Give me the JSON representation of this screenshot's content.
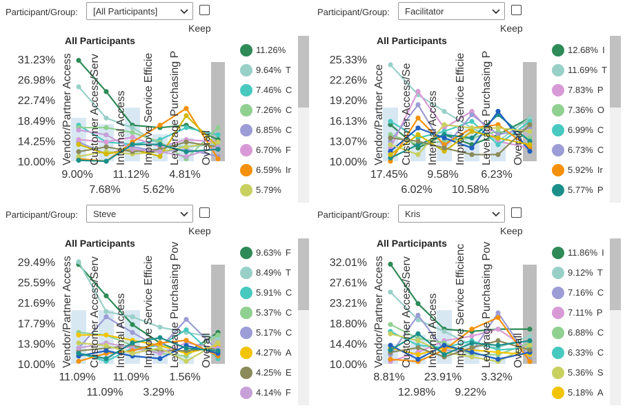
{
  "keep_label": "Keep",
  "participant_label": "Participant/Group:",
  "colors": [
    "#2e8b57",
    "#98d0c8",
    "#48c9c0",
    "#90d090",
    "#9c9cd6",
    "#d89ad6",
    "#f5900a",
    "#c8d060",
    "#d4b800",
    "#8a8a5a",
    "#c8a0d8",
    "#1a8f8a"
  ],
  "panels": [
    {
      "select_value": "[All Participants]",
      "legend": [
        {
          "pct": "11.26%",
          "label": "",
          "color": "#2e8b57"
        },
        {
          "pct": "9.64%",
          "label": "T",
          "color": "#98d0c8"
        },
        {
          "pct": "7.46%",
          "label": "C",
          "color": "#48c9c0"
        },
        {
          "pct": "7.26%",
          "label": "C",
          "color": "#90d090"
        },
        {
          "pct": "6.85%",
          "label": "C",
          "color": "#9c9cd6"
        },
        {
          "pct": "6.70%",
          "label": "F",
          "color": "#d89ad6"
        },
        {
          "pct": "6.59%",
          "label": "Ir",
          "color": "#f5900a"
        },
        {
          "pct": "5.79%",
          "label": "",
          "color": "#c8d060"
        }
      ],
      "chart_data": {
        "type": "line",
        "title": "All Participants",
        "categories": [
          "Vendor/Partner Access",
          "Customer Access/Serv",
          "Internal Access",
          "Improve Service Efficie",
          "Leverage Purchasing P",
          "Overall"
        ],
        "bar_values": [
          9.0,
          7.68,
          11.12,
          5.62,
          4.81,
          null
        ],
        "ylim": [
          10.0,
          31.23
        ],
        "yticks": [
          "31.23%",
          "26.98%",
          "22.74%",
          "18.49%",
          "14.25%",
          "10.00%"
        ],
        "series": [
          {
            "values": [
              31.0,
              24.5,
              17.5,
              17.0,
              17.5,
              14.5
            ],
            "color": "#2e8b57"
          },
          {
            "values": [
              25.5,
              19.0,
              17.0,
              13.5,
              13.0,
              13.5
            ],
            "color": "#98d0c8"
          },
          {
            "values": [
              17.5,
              14.0,
              13.5,
              14.5,
              17.0,
              15.5
            ],
            "color": "#48c9c0"
          },
          {
            "values": [
              17.0,
              17.0,
              16.0,
              14.0,
              10.5,
              17.0
            ],
            "color": "#90d090"
          },
          {
            "values": [
              14.0,
              11.5,
              13.0,
              12.0,
              12.5,
              11.0
            ],
            "color": "#9c9cd6"
          },
          {
            "values": [
              14.5,
              14.0,
              15.0,
              13.0,
              14.5,
              14.0
            ],
            "color": "#d89ad6"
          },
          {
            "values": [
              10.5,
              10.0,
              14.0,
              17.5,
              21.0,
              10.5
            ],
            "color": "#f5900a"
          },
          {
            "values": [
              11.0,
              12.0,
              11.5,
              12.0,
              13.0,
              14.0
            ],
            "color": "#c8d060"
          },
          {
            "values": [
              13.5,
              11.5,
              12.5,
              11.0,
              19.5,
              13.0
            ],
            "color": "#d4b800"
          },
          {
            "values": [
              12.0,
              13.0,
              12.0,
              12.5,
              14.0,
              13.0
            ],
            "color": "#8a8a5a"
          },
          {
            "values": [
              16.5,
              15.5,
              12.5,
              12.0,
              11.0,
              13.0
            ],
            "color": "#c8a0d8"
          },
          {
            "values": [
              10.2,
              10.0,
              13.5,
              13.5,
              12.0,
              12.5
            ],
            "color": "#1a8f8a"
          }
        ]
      }
    },
    {
      "select_value": "Facilitator",
      "legend": [
        {
          "pct": "12.68%",
          "label": "I",
          "color": "#2e8b57"
        },
        {
          "pct": "11.69%",
          "label": "T",
          "color": "#98d0c8"
        },
        {
          "pct": "7.83%",
          "label": "P",
          "color": "#d89ad6"
        },
        {
          "pct": "7.36%",
          "label": "O",
          "color": "#90d090"
        },
        {
          "pct": "6.99%",
          "label": "C",
          "color": "#48c9c0"
        },
        {
          "pct": "6.73%",
          "label": "C",
          "color": "#9c9cd6"
        },
        {
          "pct": "5.92%",
          "label": "Ir",
          "color": "#f5900a"
        },
        {
          "pct": "5.77%",
          "label": "P",
          "color": "#1a8f8a"
        }
      ],
      "chart_data": {
        "type": "line",
        "title": "All Participants",
        "categories": [
          "Vendor/Partner Acce",
          "Customer Access/Se",
          "Internal Access",
          "Improve Service Efficie",
          "Leverage Purchasing P",
          "Overall"
        ],
        "bar_values": [
          17.45,
          6.02,
          9.58,
          10.58,
          6.23,
          null
        ],
        "ylim": [
          10.0,
          25.33
        ],
        "yticks": [
          "25.33%",
          "22.26%",
          "19.20%",
          "16.13%",
          "13.07%",
          "10.00%"
        ],
        "series": [
          {
            "values": [
              15.5,
              12.0,
              14.0,
              12.5,
              14.0,
              16.5
            ],
            "color": "#2e8b57"
          },
          {
            "values": [
              24.5,
              20.0,
              17.5,
              15.0,
              13.0,
              16.5
            ],
            "color": "#98d0c8"
          },
          {
            "values": [
              12.0,
              20.5,
              15.0,
              17.5,
              13.0,
              12.0
            ],
            "color": "#d89ad6"
          },
          {
            "values": [
              14.0,
              12.5,
              13.0,
              13.5,
              14.5,
              13.5
            ],
            "color": "#90d090"
          },
          {
            "values": [
              16.0,
              13.5,
              14.5,
              16.0,
              12.5,
              16.0
            ],
            "color": "#48c9c0"
          },
          {
            "values": [
              13.0,
              18.5,
              12.0,
              17.0,
              14.0,
              15.0
            ],
            "color": "#9c9cd6"
          },
          {
            "values": [
              10.0,
              16.5,
              12.5,
              15.0,
              15.5,
              12.0
            ],
            "color": "#f5900a"
          },
          {
            "values": [
              10.5,
              12.5,
              14.0,
              13.5,
              17.0,
              13.0
            ],
            "color": "#1a8f8a"
          },
          {
            "values": [
              11.5,
              15.0,
              13.5,
              12.0,
              17.5,
              11.5
            ],
            "color": "#1f5fbf"
          },
          {
            "values": [
              12.5,
              11.0,
              15.5,
              15.0,
              15.0,
              14.5
            ],
            "color": "#c8d060"
          },
          {
            "values": [
              11.0,
              14.0,
              11.5,
              14.5,
              13.5,
              12.5
            ],
            "color": "#d4b800"
          },
          {
            "values": [
              13.5,
              13.0,
              12.0,
              11.0,
              11.0,
              15.5
            ],
            "color": "#8a8a5a"
          }
        ]
      }
    },
    {
      "select_value": "Steve",
      "legend": [
        {
          "pct": "9.63%",
          "label": "F",
          "color": "#2e8b57"
        },
        {
          "pct": "8.49%",
          "label": "T",
          "color": "#98d0c8"
        },
        {
          "pct": "5.91%",
          "label": "C",
          "color": "#48c9c0"
        },
        {
          "pct": "5.37%",
          "label": "C",
          "color": "#90d090"
        },
        {
          "pct": "5.17%",
          "label": "C",
          "color": "#9c9cd6"
        },
        {
          "pct": "4.27%",
          "label": "A",
          "color": "#f2c400"
        },
        {
          "pct": "4.25%",
          "label": "E",
          "color": "#8a8a5a"
        },
        {
          "pct": "4.14%",
          "label": "F",
          "color": "#c8a0d8"
        }
      ],
      "chart_data": {
        "type": "line",
        "title": "All Participants",
        "categories": [
          "Vendor/Partner Access",
          "Customer Access/Serv",
          "Internal Access",
          "Improve Service Efficie",
          "Leverage Purchasing Pov",
          "Overall"
        ],
        "bar_values": [
          11.09,
          11.09,
          11.09,
          3.29,
          1.56,
          null
        ],
        "ylim": [
          10.0,
          29.49
        ],
        "yticks": [
          "29.49%",
          "25.59%",
          "21.69%",
          "17.79%",
          "13.90%",
          "10.00%"
        ],
        "series": [
          {
            "values": [
              29.0,
              23.0,
              17.5,
              14.0,
              12.0,
              16.0
            ],
            "color": "#2e8b57"
          },
          {
            "values": [
              29.5,
              20.0,
              19.0,
              17.0,
              16.0,
              15.0
            ],
            "color": "#98d0c8"
          },
          {
            "values": [
              12.0,
              10.5,
              13.0,
              13.5,
              16.5,
              11.0
            ],
            "color": "#48c9c0"
          },
          {
            "values": [
              16.0,
              15.5,
              13.5,
              12.0,
              11.5,
              15.5
            ],
            "color": "#90d090"
          },
          {
            "values": [
              13.0,
              19.0,
              16.0,
              13.0,
              18.5,
              12.5
            ],
            "color": "#9c9cd6"
          },
          {
            "values": [
              15.5,
              15.5,
              14.5,
              13.5,
              12.0,
              13.5
            ],
            "color": "#f2c400"
          },
          {
            "values": [
              12.5,
              13.0,
              13.5,
              12.5,
              12.5,
              13.0
            ],
            "color": "#8a8a5a"
          },
          {
            "values": [
              13.0,
              14.0,
              13.0,
              12.0,
              14.0,
              13.0
            ],
            "color": "#c8a0d8"
          },
          {
            "values": [
              10.5,
              12.0,
              12.5,
              14.0,
              14.5,
              11.5
            ],
            "color": "#f5900a"
          },
          {
            "values": [
              11.5,
              12.5,
              11.5,
              11.0,
              13.5,
              12.0
            ],
            "color": "#1f5fbf"
          },
          {
            "values": [
              14.0,
              13.5,
              12.0,
              13.0,
              10.5,
              14.0
            ],
            "color": "#c8d060"
          },
          {
            "values": [
              12.0,
              11.0,
              14.0,
              15.0,
              13.0,
              12.5
            ],
            "color": "#1a8f8a"
          }
        ]
      }
    },
    {
      "select_value": "Kris",
      "legend": [
        {
          "pct": "11.86%",
          "label": "I",
          "color": "#2e8b57"
        },
        {
          "pct": "9.12%",
          "label": "T",
          "color": "#98d0c8"
        },
        {
          "pct": "7.16%",
          "label": "C",
          "color": "#9c9cd6"
        },
        {
          "pct": "7.11%",
          "label": "P",
          "color": "#d89ad6"
        },
        {
          "pct": "6.88%",
          "label": "C",
          "color": "#90d090"
        },
        {
          "pct": "6.33%",
          "label": "C",
          "color": "#48c9c0"
        },
        {
          "pct": "5.36%",
          "label": "S",
          "color": "#c8d060"
        },
        {
          "pct": "5.18%",
          "label": "A",
          "color": "#f2c400"
        }
      ],
      "chart_data": {
        "type": "line",
        "title": "All Participants",
        "categories": [
          "Vendor/Partner Access",
          "Customer Access/Serv",
          "Internal Access",
          "Improve Service Efficienc",
          "Leverage Purchasing Pov",
          "Overall"
        ],
        "bar_values": [
          8.81,
          12.98,
          23.91,
          9.22,
          3.32,
          null
        ],
        "ylim": [
          10.0,
          32.01
        ],
        "yticks": [
          "32.01%",
          "27.61%",
          "23.21%",
          "18.80%",
          "14.40%",
          "10.00%"
        ],
        "series": [
          {
            "values": [
              31.5,
              23.0,
              17.5,
              17.0,
              17.5,
              17.5
            ],
            "color": "#2e8b57"
          },
          {
            "values": [
              25.5,
              19.5,
              17.0,
              14.0,
              13.5,
              16.0
            ],
            "color": "#98d0c8"
          },
          {
            "values": [
              12.0,
              20.5,
              13.0,
              12.5,
              21.0,
              11.0
            ],
            "color": "#9c9cd6"
          },
          {
            "values": [
              10.5,
              12.5,
              15.0,
              16.0,
              17.5,
              13.0
            ],
            "color": "#d89ad6"
          },
          {
            "values": [
              18.5,
              15.5,
              14.5,
              12.0,
              12.0,
              14.5
            ],
            "color": "#90d090"
          },
          {
            "values": [
              17.0,
              14.0,
              13.5,
              15.0,
              13.0,
              13.5
            ],
            "color": "#48c9c0"
          },
          {
            "values": [
              16.5,
              15.0,
              12.5,
              11.5,
              10.5,
              14.0
            ],
            "color": "#c8d060"
          },
          {
            "values": [
              13.5,
              12.0,
              13.5,
              13.0,
              12.5,
              12.0
            ],
            "color": "#f2c400"
          },
          {
            "values": [
              11.0,
              10.5,
              13.0,
              17.5,
              20.0,
              10.5
            ],
            "color": "#f5900a"
          },
          {
            "values": [
              14.0,
              11.0,
              14.0,
              12.5,
              11.0,
              12.5
            ],
            "color": "#1f5fbf"
          },
          {
            "values": [
              12.5,
              13.5,
              11.5,
              13.5,
              15.0,
              13.0
            ],
            "color": "#8a8a5a"
          },
          {
            "values": [
              13.0,
              16.5,
              12.0,
              14.5,
              14.0,
              15.0
            ],
            "color": "#1a8f8a"
          }
        ]
      }
    }
  ]
}
